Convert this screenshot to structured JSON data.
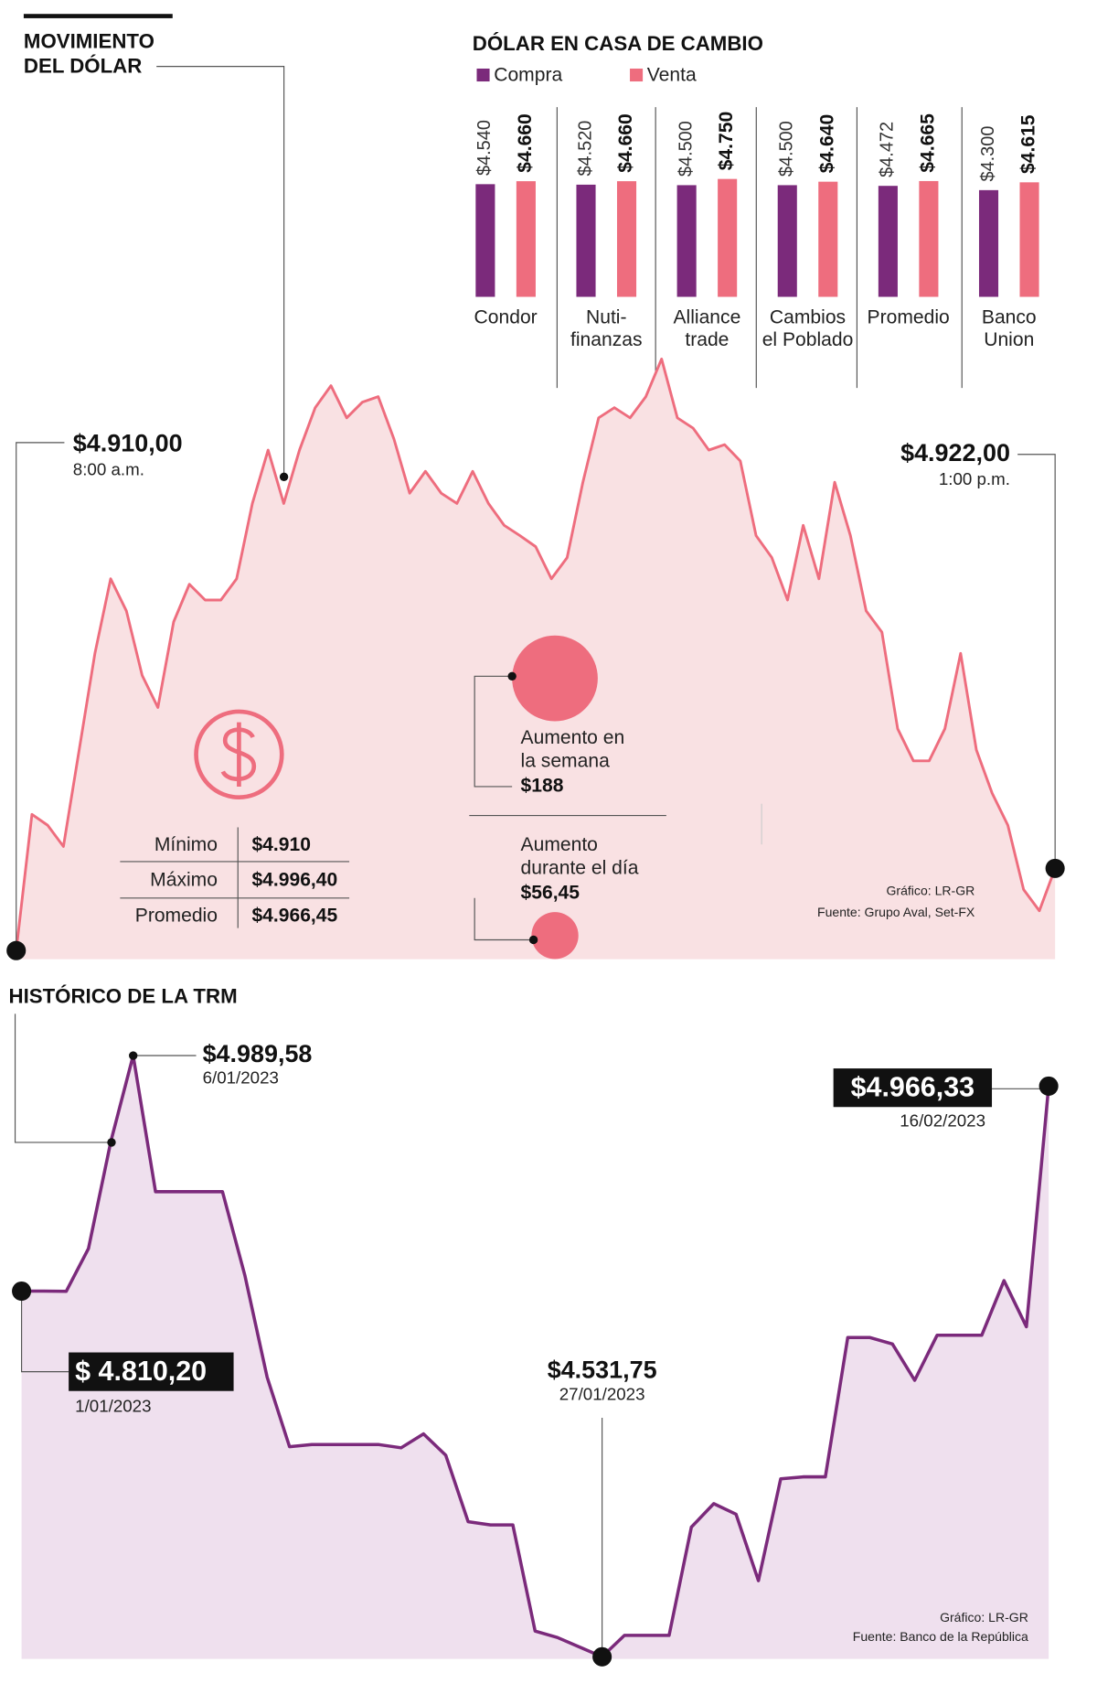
{
  "chart_data": [
    {
      "type": "line",
      "title": [
        "MOVIMIENTO",
        "DEL DÓLAR"
      ],
      "color": "#ee6d7e",
      "fill": "#f9e1e3",
      "categories": [
        "8:00 a.m.",
        null,
        null,
        null,
        null,
        null,
        null,
        null,
        null,
        null,
        null,
        null,
        null,
        null,
        null,
        null,
        null,
        null,
        null,
        null,
        null,
        null,
        null,
        null,
        null,
        null,
        null,
        null,
        null,
        null,
        null,
        null,
        null,
        null,
        null,
        null,
        null,
        null,
        null,
        null,
        null,
        null,
        null,
        null,
        null,
        null,
        null,
        null,
        null,
        null,
        null,
        null,
        null,
        null,
        null,
        null,
        null,
        null,
        null,
        null,
        null,
        null,
        null,
        null,
        null,
        null,
        "1:00 p.m."
      ],
      "values": [
        4910,
        4929.9,
        4928.3,
        4925.2,
        4939.3,
        4953.4,
        4964.3,
        4959.6,
        4950.2,
        4945.5,
        4958.0,
        4963.5,
        4961.2,
        4961.2,
        4964.3,
        4975.3,
        4983.1,
        4975.3,
        4983.1,
        4989.3,
        4992.5,
        4987.8,
        4990.1,
        4990.9,
        4984.7,
        4976.8,
        4980.0,
        4976.8,
        4975.3,
        4980.0,
        4975.3,
        4972.1,
        4970.6,
        4969.0,
        4964.3,
        4967.4,
        4978.4,
        4987.8,
        4989.3,
        4987.8,
        4990.9,
        4996.4,
        4987.8,
        4986.3,
        4983.1,
        4983.9,
        4981.5,
        4970.6,
        4967.4,
        4961.2,
        4972.1,
        4964.3,
        4978.4,
        4970.6,
        4959.6,
        4956.5,
        4942.4,
        4937.7,
        4937.7,
        4942.4,
        4953.4,
        4939.3,
        4933.0,
        4928.3,
        4918.9,
        4915.8,
        4922
      ],
      "value_labels": [
        "$4.910,00",
        null,
        null,
        null,
        null,
        null,
        null,
        null,
        null,
        null,
        null,
        null,
        null,
        null,
        null,
        null,
        null,
        null,
        null,
        null,
        null,
        null,
        null,
        null,
        null,
        null,
        null,
        null,
        null,
        null,
        null,
        null,
        null,
        null,
        null,
        null,
        null,
        null,
        null,
        null,
        null,
        null,
        null,
        null,
        null,
        null,
        null,
        null,
        null,
        null,
        null,
        null,
        null,
        null,
        null,
        null,
        null,
        null,
        null,
        null,
        null,
        null,
        null,
        null,
        null,
        null,
        "$4.922,00"
      ],
      "stats": [
        [
          "Mínimo",
          "$4.910"
        ],
        [
          "Máximo",
          "$4.996,40"
        ],
        [
          "Promedio",
          "$4.966,45"
        ]
      ],
      "bubbles": [
        {
          "label": [
            "Aumento en",
            "la semana"
          ],
          "value": 188,
          "value_label": "$188"
        },
        {
          "label": [
            "Aumento",
            "durante el día"
          ],
          "value": 56.45,
          "value_label": "$56,45"
        }
      ],
      "source": [
        "Gráfico: LR-GR",
        "Fuente: Grupo Aval, Set-FX"
      ]
    },
    {
      "type": "bar",
      "title": "DÓLAR EN CASA DE CAMBIO",
      "categories": [
        [
          "Condor"
        ],
        [
          "Nuti-",
          "finanzas"
        ],
        [
          "Alliance",
          "trade"
        ],
        [
          "Cambios",
          "el Poblado"
        ],
        [
          "Promedio"
        ],
        [
          "Banco",
          "Union"
        ]
      ],
      "series": [
        {
          "name": "Compra",
          "color": "#7b2a7b",
          "values": [
            4540,
            4520,
            4500,
            4500,
            4472,
            4300
          ],
          "value_labels": [
            "$4.540",
            "$4.520",
            "$4.500",
            "$4.500",
            "$4.472",
            "$4.300"
          ]
        },
        {
          "name": "Venta",
          "color": "#ee6d7e",
          "values": [
            4660,
            4660,
            4750,
            4640,
            4665,
            4615
          ],
          "value_labels": [
            "$4.660",
            "$4.660",
            "$4.750",
            "$4.640",
            "$4.665",
            "$4.615"
          ]
        }
      ]
    },
    {
      "type": "line",
      "title": "HISTÓRICO DE LA TRM",
      "color": "#7b2a7b",
      "fill": "#efe0ee",
      "categories": [
        "1/01/2023",
        null,
        null,
        null,
        null,
        "6/01/2023",
        null,
        null,
        null,
        null,
        null,
        null,
        null,
        null,
        null,
        null,
        null,
        null,
        null,
        null,
        null,
        null,
        null,
        null,
        null,
        null,
        "27/01/2023",
        null,
        null,
        null,
        null,
        null,
        null,
        null,
        null,
        null,
        null,
        null,
        null,
        null,
        null,
        null,
        null,
        null,
        null,
        null,
        "16/02/2023"
      ],
      "values": [
        4810.2,
        4810.2,
        4810.0,
        4842.7,
        4924.3,
        4989.58,
        4885.9,
        4885.9,
        4885.9,
        4885.9,
        4822.2,
        4744.7,
        4691.7,
        4693.3,
        4693.3,
        4693.3,
        4693.3,
        4690.9,
        4701.5,
        4685.2,
        4634.6,
        4632.1,
        4632.1,
        4551.3,
        4546.4,
        4539.1,
        4531.75,
        4548.1,
        4548.1,
        4548.1,
        4630.5,
        4648.4,
        4640.3,
        4589.7,
        4667.2,
        4668.8,
        4668.8,
        4774.9,
        4774.9,
        4770.0,
        4742.3,
        4776.6,
        4776.6,
        4776.6,
        4818.2,
        4783.1,
        4966.33
      ],
      "value_labels": [
        "$ 4.810,20",
        null,
        null,
        null,
        null,
        "$4.989,58",
        null,
        null,
        null,
        null,
        null,
        null,
        null,
        null,
        null,
        null,
        null,
        null,
        null,
        null,
        null,
        null,
        null,
        null,
        null,
        null,
        "$4.531,75",
        null,
        null,
        null,
        null,
        null,
        null,
        null,
        null,
        null,
        null,
        null,
        null,
        null,
        null,
        null,
        null,
        null,
        null,
        null,
        "$4.966,33"
      ],
      "source": [
        "Gráfico: LR-GR",
        "Fuente: Banco de la República"
      ]
    }
  ]
}
